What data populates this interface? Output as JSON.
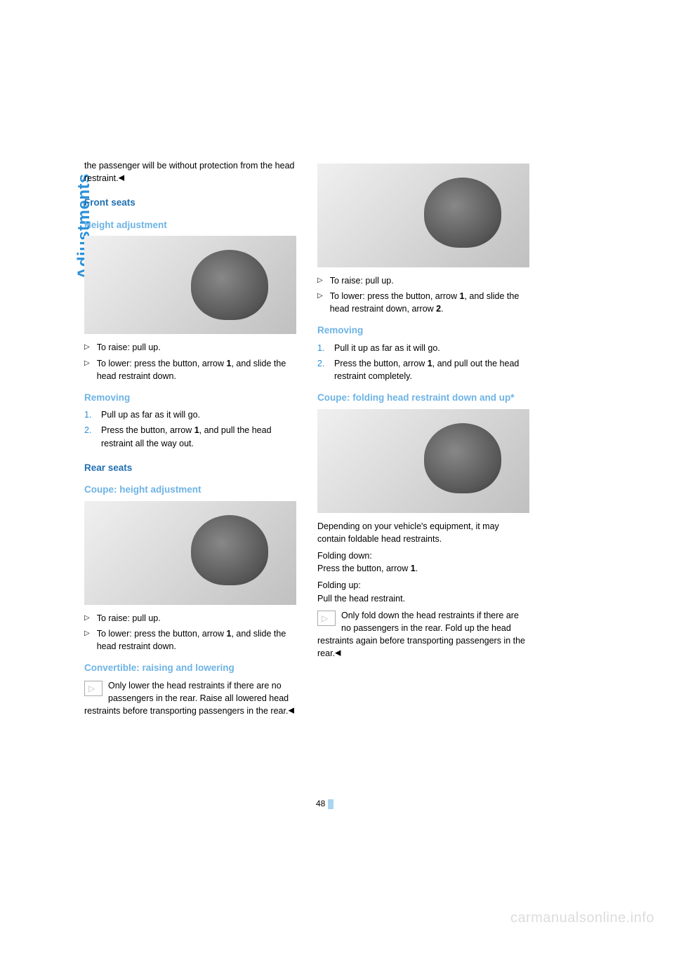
{
  "sideTitle": "Adjustments",
  "pageNumber": "48",
  "watermark": "carmanualsonline.info",
  "left": {
    "introPara": "the passenger will be without protection from the head restraint.",
    "frontSeats": "Front seats",
    "heightAdj": "Height adjustment",
    "raise": "To raise: pull up.",
    "lower1": "To lower: press the button, arrow ",
    "lower1b": "1",
    "lower1c": ", and slide the head restraint down.",
    "removing": "Removing",
    "rem1": "Pull up as far as it will go.",
    "rem2a": "Press the button, arrow ",
    "rem2b": "1",
    "rem2c": ", and pull the head restraint all the way out.",
    "rearSeats": "Rear seats",
    "coupeHeight": "Coupe: height adjustment",
    "raise2": "To raise: pull up.",
    "lower2a": "To lower: press the button, arrow ",
    "lower2b": "1",
    "lower2c": ", and slide the head restraint down.",
    "convTitle": "Convertible: raising and lowering",
    "convNote": "Only lower the head restraints if there are no passengers in the rear. Raise all lowered head restraints before transporting passengers in the rear."
  },
  "right": {
    "raise": "To raise: pull up.",
    "lower1a": "To lower: press the button, arrow ",
    "lower1b": "1",
    "lower1c": ", and slide the head restraint down, arrow ",
    "lower1d": "2",
    "lower1e": ".",
    "removing": "Removing",
    "rem1": "Pull it up as far as it will go.",
    "rem2a": "Press the button, arrow ",
    "rem2b": "1",
    "rem2c": ", and pull out the head restraint completely.",
    "coupeFold": "Coupe: folding head restraint down and up*",
    "depend": "Depending on your vehicle's equipment, it may contain foldable head restraints.",
    "foldDownLabel": "Folding down:",
    "foldDown1a": "Press the button, arrow ",
    "foldDown1b": "1",
    "foldDown1c": ".",
    "foldUpLabel": "Folding up:",
    "foldUp": "Pull the head restraint.",
    "foldNote": "Only fold down the head restraints if there are no passengers in the rear. Fold up the head restraints again before transporting passengers in the rear."
  }
}
